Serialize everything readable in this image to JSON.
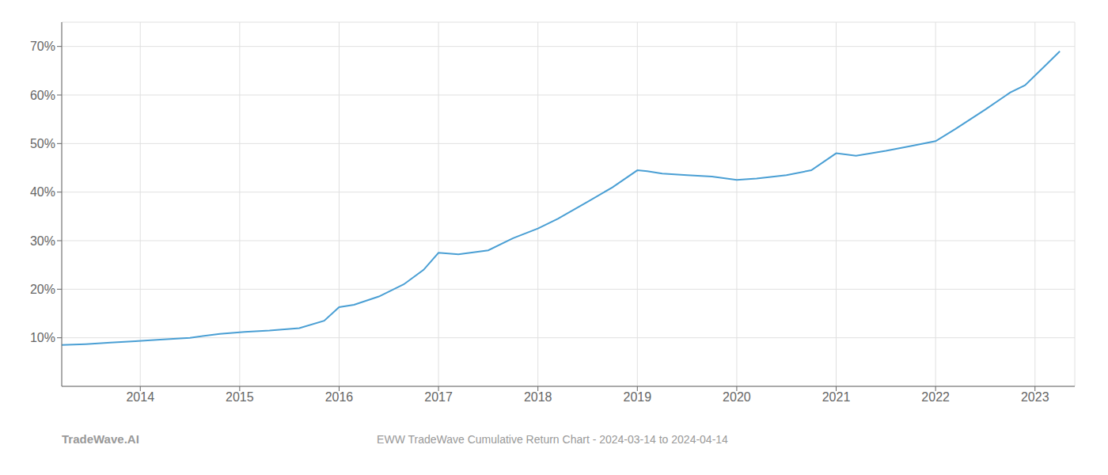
{
  "chart_data": {
    "type": "line",
    "title": "EWW TradeWave Cumulative Return Chart - 2024-03-14 to 2024-04-14",
    "annotations": [
      "TradeWave.AI"
    ],
    "x": [
      2013.21,
      2013.45,
      2013.7,
      2013.95,
      2014.2,
      2014.5,
      2014.8,
      2015.05,
      2015.3,
      2015.6,
      2015.85,
      2016.0,
      2016.15,
      2016.4,
      2016.65,
      2016.85,
      2017.0,
      2017.2,
      2017.5,
      2017.75,
      2018.0,
      2018.2,
      2018.5,
      2018.75,
      2019.0,
      2019.1,
      2019.25,
      2019.5,
      2019.75,
      2020.0,
      2020.2,
      2020.5,
      2020.75,
      2021.0,
      2021.2,
      2021.5,
      2021.75,
      2022.0,
      2022.2,
      2022.5,
      2022.75,
      2022.9,
      2023.1,
      2023.25
    ],
    "values": [
      8.5,
      8.7,
      9.0,
      9.3,
      9.6,
      10.0,
      10.8,
      11.2,
      11.5,
      12.0,
      13.5,
      16.3,
      16.8,
      18.5,
      21.0,
      24.0,
      27.5,
      27.2,
      28.0,
      30.5,
      32.5,
      34.5,
      38.0,
      41.0,
      44.5,
      44.3,
      43.8,
      43.5,
      43.2,
      42.5,
      42.8,
      43.5,
      44.5,
      48.0,
      47.5,
      48.5,
      49.5,
      50.5,
      53.0,
      57.0,
      60.5,
      62.0,
      66.0,
      69.0
    ],
    "color": "#4a9fd4",
    "xlim": [
      2013.21,
      2023.4
    ],
    "xticks": [
      2014,
      2015,
      2016,
      2017,
      2018,
      2019,
      2020,
      2021,
      2022,
      2023
    ],
    "ylim": [
      0,
      75
    ],
    "yticks": [
      {
        "value": 10,
        "label": "10%"
      },
      {
        "value": 20,
        "label": "20%"
      },
      {
        "value": 30,
        "label": "30%"
      },
      {
        "value": 40,
        "label": "40%"
      },
      {
        "value": 50,
        "label": "50%"
      },
      {
        "value": 60,
        "label": "60%"
      },
      {
        "value": 70,
        "label": "70%"
      }
    ],
    "grid": true
  }
}
